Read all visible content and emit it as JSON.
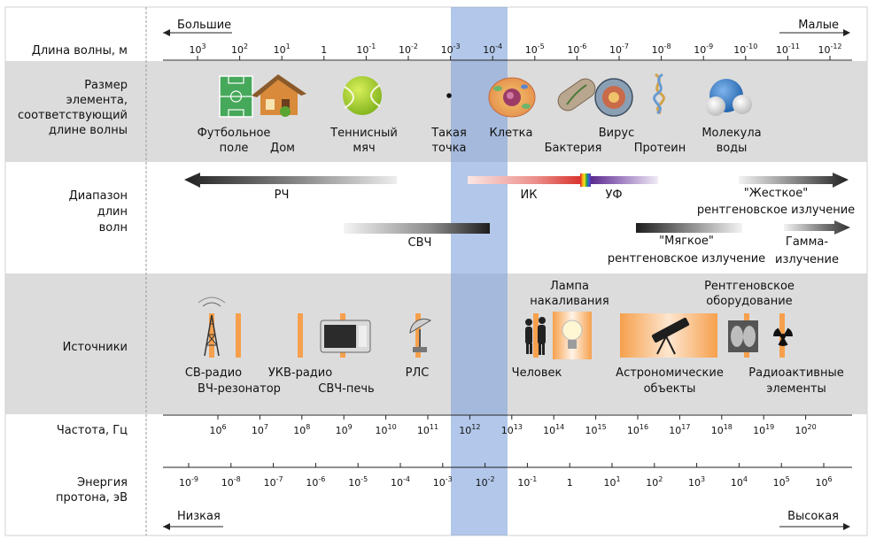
{
  "direction": {
    "left_top": "Большие",
    "right_top": "Малые",
    "left_bottom": "Низкая",
    "right_bottom": "Высокая"
  },
  "rows": {
    "wavelength": "Длина волны, м",
    "size": [
      "Размер",
      "элемента,",
      "соответствующий",
      "длине волны"
    ],
    "range": [
      "Диапазон",
      "длин",
      "волн"
    ],
    "sources": "Источники",
    "frequency": "Частота, Гц",
    "energy": [
      "Энергия",
      "протона, эВ"
    ]
  },
  "wavelength_ticks": [
    {
      "b": "10",
      "e": "3"
    },
    {
      "b": "10",
      "e": "2"
    },
    {
      "b": "10",
      "e": "1"
    },
    {
      "b": "1",
      "e": ""
    },
    {
      "b": "10",
      "e": "-1"
    },
    {
      "b": "10",
      "e": "-2"
    },
    {
      "b": "10",
      "e": "-3"
    },
    {
      "b": "10",
      "e": "-4"
    },
    {
      "b": "10",
      "e": "-5"
    },
    {
      "b": "10",
      "e": "-6"
    },
    {
      "b": "10",
      "e": "-7"
    },
    {
      "b": "10",
      "e": "-8"
    },
    {
      "b": "10",
      "e": "-9"
    },
    {
      "b": "10",
      "e": "-10"
    },
    {
      "b": "10",
      "e": "-11"
    },
    {
      "b": "10",
      "e": "-12"
    }
  ],
  "frequency_ticks": [
    {
      "b": "10",
      "e": "6"
    },
    {
      "b": "10",
      "e": "7"
    },
    {
      "b": "10",
      "e": "8"
    },
    {
      "b": "10",
      "e": "9"
    },
    {
      "b": "10",
      "e": "10"
    },
    {
      "b": "10",
      "e": "11"
    },
    {
      "b": "10",
      "e": "12"
    },
    {
      "b": "10",
      "e": "13"
    },
    {
      "b": "10",
      "e": "14"
    },
    {
      "b": "10",
      "e": "15"
    },
    {
      "b": "10",
      "e": "16"
    },
    {
      "b": "10",
      "e": "17"
    },
    {
      "b": "10",
      "e": "18"
    },
    {
      "b": "10",
      "e": "19"
    },
    {
      "b": "10",
      "e": "20"
    }
  ],
  "energy_ticks": [
    {
      "b": "10",
      "e": "-9"
    },
    {
      "b": "10",
      "e": "-8"
    },
    {
      "b": "10",
      "e": "-7"
    },
    {
      "b": "10",
      "e": "-6"
    },
    {
      "b": "10",
      "e": "-5"
    },
    {
      "b": "10",
      "e": "-4"
    },
    {
      "b": "10",
      "e": "-3"
    },
    {
      "b": "10",
      "e": "-2"
    },
    {
      "b": "10",
      "e": "-1"
    },
    {
      "b": "1",
      "e": ""
    },
    {
      "b": "10",
      "e": "1"
    },
    {
      "b": "10",
      "e": "2"
    },
    {
      "b": "10",
      "e": "3"
    },
    {
      "b": "10",
      "e": "4"
    },
    {
      "b": "10",
      "e": "5"
    },
    {
      "b": "10",
      "e": "6"
    }
  ],
  "size_items": {
    "football": [
      "Футбольное",
      "поле"
    ],
    "house": "Дом",
    "ball": [
      "Теннисный",
      "мяч"
    ],
    "dot": [
      "Такая",
      "точка"
    ],
    "cell": "Клетка",
    "bacteria": "Бактерия",
    "virus": "Вирус",
    "protein": "Протеин",
    "water": [
      "Молекула",
      "воды"
    ]
  },
  "bands": {
    "rf": "РЧ",
    "ir": "ИК",
    "uv": "УФ",
    "hard_xray": [
      "\"Жесткое\"",
      "рентгеновское излучение"
    ],
    "microwave": "СВЧ",
    "soft_xray": [
      "\"Мягкое\"",
      "рентгеновское излучение"
    ],
    "gamma": [
      "Гамма-",
      "излучение"
    ]
  },
  "sources": {
    "am_radio": "СВ-радио",
    "rf_cavity": "ВЧ-резонатор",
    "fm_radio": "УКВ-радио",
    "microwave_oven": "СВЧ-печь",
    "radar": "РЛС",
    "human": "Человек",
    "lamp": [
      "Лампа",
      "накаливания"
    ],
    "astro": [
      "Астрономические",
      "объекты"
    ],
    "xray_machine": [
      "Рентгеновское",
      "оборудование"
    ],
    "radioactive": [
      "Радиоактивные",
      "элементы"
    ]
  },
  "colors": {
    "row_bg": "#dcdcdc",
    "highlight": "#7ea2db",
    "orange": "#f6a04d",
    "axis": "#222222"
  }
}
